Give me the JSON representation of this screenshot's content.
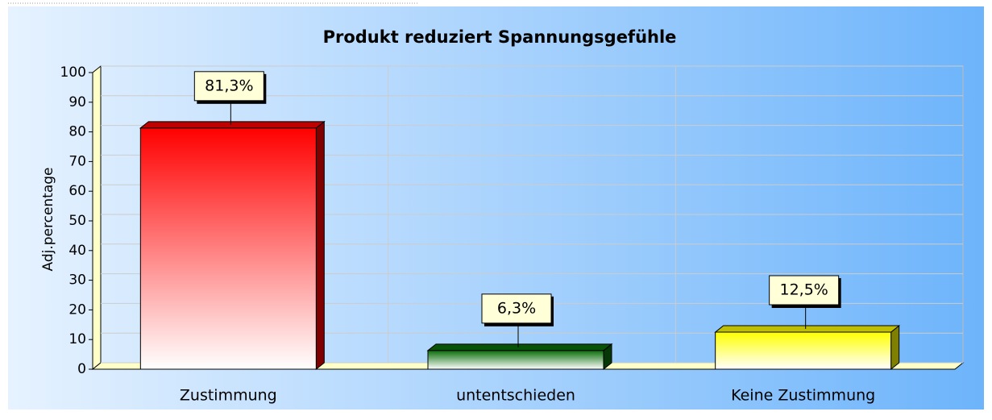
{
  "chart_data": {
    "type": "bar",
    "title": "Produkt reduziert Spannungsgefühle",
    "y_label": "Adj.percentage",
    "categories": [
      "Zustimmung",
      "untentschieden",
      "Keine Zustimmung"
    ],
    "values": [
      81.3,
      6.3,
      12.5
    ],
    "value_labels": [
      "81,3%",
      "6,3%",
      "12,5%"
    ],
    "colors": [
      "#ff0000",
      "#0b6e0b",
      "#ffff00"
    ],
    "ylim": [
      0,
      100
    ],
    "yticks": [
      0,
      10,
      20,
      30,
      40,
      50,
      60,
      70,
      80,
      90,
      100
    ],
    "grid": true
  }
}
